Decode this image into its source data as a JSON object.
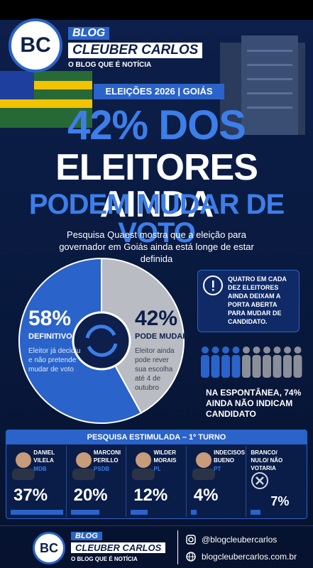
{
  "header": {
    "logo": "BC",
    "blog": "BLOG",
    "name": "CLEUBER CARLOS",
    "tagline": "O BLOG QUE É NOTÍCIA"
  },
  "badge": "ELEIÇÕES 2026 | GOIÁS",
  "headline": [
    "42% DOS",
    "ELEITORES AINDA",
    "PODEM MUDAR DE VOTO"
  ],
  "subtitle": "Pesquisa Quaest mostra que a eleição para governador em Goiás ainda está longe de estar definida",
  "donut": {
    "segments": [
      {
        "value": 58,
        "value_label": "58%",
        "name": "DEFINITIVO",
        "description": "Eleitor já decidiu e não pretende mudar de voto",
        "color": "#2a63c9"
      },
      {
        "value": 42,
        "value_label": "42%",
        "name": "PODE MUDAR",
        "description": "Eleitor ainda pode rever sua escolha até 4 de outubro",
        "color": "#b9bcc2"
      }
    ]
  },
  "callout": "QUATRO EM CADA DEZ ELEITORES AINDA DEIXAM A PORTA ABERTA PARA MUDAR DE CANDIDATO.",
  "spontaneous": "NA ESPONTÂNEA, 74% AINDA NÃO INDICAM CANDIDATO",
  "poll": {
    "title": "PESQUISA ESTIMULADA – 1º TURNO",
    "candidates": [
      {
        "name": "DANIEL VILELA",
        "party": "MDB",
        "value": 37,
        "value_label": "37%"
      },
      {
        "name": "MARCONI PERILLO",
        "party": "PSDB",
        "value": 20,
        "value_label": "20%"
      },
      {
        "name": "WILDER MORAIS",
        "party": "PL",
        "value": 12,
        "value_label": "12%"
      },
      {
        "name": "INDECISOS BUENO",
        "party": "PT",
        "value": 4,
        "value_label": "4%"
      },
      {
        "name": "BRANCO/ NULO/ NÃO VOTARIA",
        "value": 7,
        "value_label": "7%"
      }
    ]
  },
  "footer": {
    "logo": "BC",
    "blog": "BLOG",
    "name": "CLEUBER CARLOS",
    "tagline": "O BLOG QUE É NOTÍCIA",
    "instagram": "@blogcleubercarlos",
    "site": "blogcleubercarlos.com.br"
  }
}
